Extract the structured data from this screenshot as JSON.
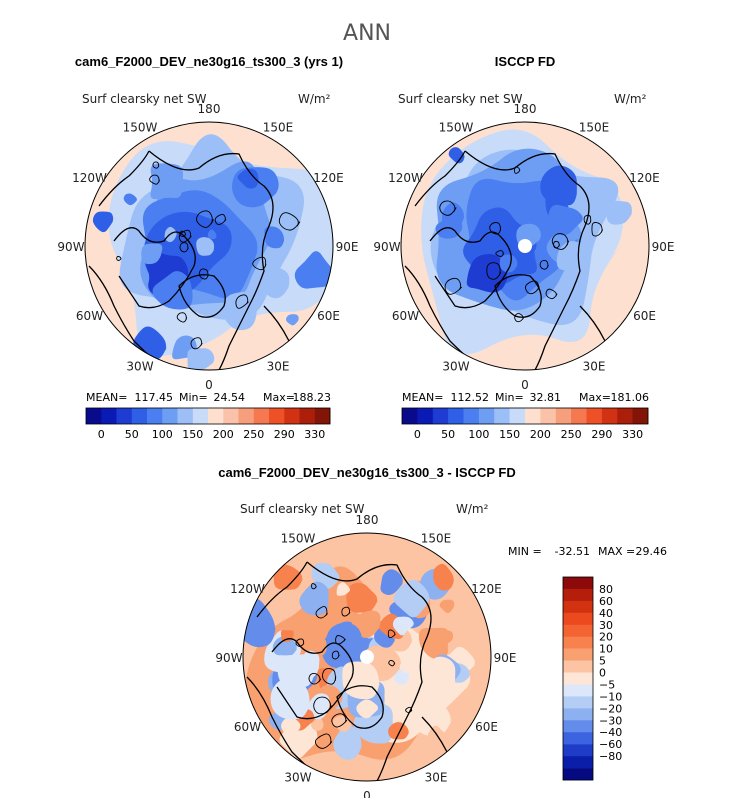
{
  "page": {
    "title": "ANN"
  },
  "panels": [
    {
      "id": "model",
      "title": "cam6_F2000_DEV_ne30g16_ts300_3 (yrs 1)",
      "variable_label": "Surf clearsky net SW",
      "units_label": "W/m²",
      "lon_labels": [
        "180",
        "150E",
        "120E",
        "90E",
        "60E",
        "30E",
        "0",
        "30W",
        "60W",
        "90W",
        "120W",
        "150W"
      ],
      "stats": {
        "mean_label": "MEAN=",
        "mean": "117.45",
        "min_label": "Min=",
        "min": "24.54",
        "max_label": "Max=",
        "max": "188.23"
      },
      "colorbar_ticks": [
        "0",
        "50",
        "100",
        "150",
        "200",
        "250",
        "290",
        "330"
      ],
      "colorbar_colors": [
        "#0a0a8c",
        "#0a1ab4",
        "#1e3cd2",
        "#2f5fe6",
        "#4b7ef0",
        "#6e9ef4",
        "#9cbff8",
        "#c8dcfa",
        "#fde0cf",
        "#fac2a8",
        "#f79e7c",
        "#f47850",
        "#ee5028",
        "#d23214",
        "#aa1e0a",
        "#821408"
      ],
      "pole_mask": false
    },
    {
      "id": "obs",
      "title": "ISCCP FD",
      "variable_label": "Surf clearsky net SW",
      "units_label": "W/m²",
      "lon_labels": [
        "180",
        "150E",
        "120E",
        "90E",
        "60E",
        "30E",
        "0",
        "30W",
        "60W",
        "90W",
        "120W",
        "150W"
      ],
      "stats": {
        "mean_label": "MEAN=",
        "mean": "112.52",
        "min_label": "Min=",
        "min": "32.81",
        "max_label": "Max=",
        "max": "181.06"
      },
      "colorbar_ticks": [
        "0",
        "50",
        "100",
        "150",
        "200",
        "250",
        "290",
        "330"
      ],
      "colorbar_colors": [
        "#0a0a8c",
        "#0a1ab4",
        "#1e3cd2",
        "#2f5fe6",
        "#4b7ef0",
        "#6e9ef4",
        "#9cbff8",
        "#c8dcfa",
        "#fde0cf",
        "#fac2a8",
        "#f79e7c",
        "#f47850",
        "#ee5028",
        "#d23214",
        "#aa1e0a",
        "#821408"
      ],
      "pole_mask": true
    }
  ],
  "diff": {
    "title": "cam6_F2000_DEV_ne30g16_ts300_3 - ISCCP FD",
    "variable_label": "Surf clearsky net SW",
    "units_label": "W/m²",
    "lon_labels": [
      "180",
      "150E",
      "120E",
      "90E",
      "60E",
      "30E",
      "0",
      "30W",
      "60W",
      "90W",
      "120W",
      "150W"
    ],
    "stats": {
      "min_label": "MIN =",
      "min": "-32.51",
      "max_label": "MAX =",
      "max": "29.46"
    },
    "colorbar_ticks": [
      "80",
      "60",
      "40",
      "30",
      "20",
      "10",
      "5",
      "0",
      "−5",
      "−10",
      "−20",
      "−30",
      "−40",
      "−60",
      "−80"
    ],
    "colorbar_colors": [
      "#8c0a0a",
      "#b41e0a",
      "#d2320f",
      "#eb4a1e",
      "#f46432",
      "#f7824e",
      "#f9a070",
      "#fcc4a2",
      "#fde6d6",
      "#dce8fa",
      "#b4cdf5",
      "#8cb0f0",
      "#648ceb",
      "#3c64e1",
      "#1e3cc8",
      "#0a1eaa",
      "#050a82"
    ]
  },
  "chart_data": [
    {
      "type": "heatmap",
      "projection": "north-polar-stereographic",
      "title": "cam6_F2000_DEV_ne30g16_ts300_3 (yrs 1)",
      "variable": "Surf clearsky net SW",
      "units": "W/m²",
      "mean": 117.45,
      "min": 24.54,
      "max": 188.23,
      "levels": [
        0,
        50,
        100,
        150,
        200,
        250,
        290,
        330
      ]
    },
    {
      "type": "heatmap",
      "projection": "north-polar-stereographic",
      "title": "ISCCP FD",
      "variable": "Surf clearsky net SW",
      "units": "W/m²",
      "mean": 112.52,
      "min": 32.81,
      "max": 181.06,
      "levels": [
        0,
        50,
        100,
        150,
        200,
        250,
        290,
        330
      ]
    },
    {
      "type": "heatmap",
      "projection": "north-polar-stereographic",
      "title": "cam6_F2000_DEV_ne30g16_ts300_3 - ISCCP FD",
      "variable": "Surf clearsky net SW",
      "units": "W/m²",
      "min": -32.51,
      "max": 29.46,
      "levels": [
        -80,
        -60,
        -40,
        -30,
        -20,
        -10,
        -5,
        0,
        5,
        10,
        20,
        30,
        40,
        60,
        80
      ]
    }
  ]
}
